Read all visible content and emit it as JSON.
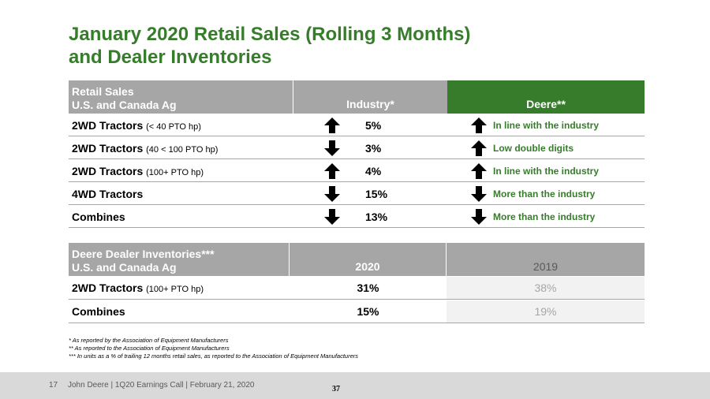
{
  "title_line1": "January 2020 Retail Sales (Rolling 3 Months)",
  "title_line2": "and Dealer Inventories",
  "retail": {
    "header": {
      "col1_line1": "Retail Sales",
      "col1_line2": "U.S. and Canada Ag",
      "col2": "Industry*",
      "col3": "Deere**"
    },
    "rows": [
      {
        "name": "2WD Tractors",
        "detail": "(< 40 PTO hp)",
        "industry_dir": "up",
        "industry_val": "5%",
        "deere_dir": "up",
        "deere_text": "In line with the industry"
      },
      {
        "name": "2WD Tractors",
        "detail": "(40 < 100 PTO hp)",
        "industry_dir": "down",
        "industry_val": "3%",
        "deere_dir": "up",
        "deere_text": "Low double digits"
      },
      {
        "name": "2WD Tractors",
        "detail": "(100+ PTO hp)",
        "industry_dir": "up",
        "industry_val": "4%",
        "deere_dir": "up",
        "deere_text": "In line with the industry"
      },
      {
        "name": "4WD Tractors",
        "detail": "",
        "industry_dir": "down",
        "industry_val": "15%",
        "deere_dir": "down",
        "deere_text": "More than the industry"
      },
      {
        "name": "Combines",
        "detail": "",
        "industry_dir": "down",
        "industry_val": "13%",
        "deere_dir": "down",
        "deere_text": "More than the industry"
      }
    ]
  },
  "inventory": {
    "header": {
      "col1_line1": "Deere Dealer Inventories***",
      "col1_line2": "U.S. and Canada Ag",
      "col2": "2020",
      "col3": "2019"
    },
    "rows": [
      {
        "name": "2WD Tractors",
        "detail": "(100+ PTO hp)",
        "v2020": "31%",
        "v2019": "38%"
      },
      {
        "name": "Combines",
        "detail": "",
        "v2020": "15%",
        "v2019": "19%"
      }
    ]
  },
  "footnotes": {
    "f1": "* As reported by the Association of Equipment Manufacturers",
    "f2": "** As reported to the Association of Equipment Manufacturers",
    "f3": "*** In units as a % of trailing 12 months retail sales, as reported to the Association of Equipment Manufacturers"
  },
  "footer": {
    "page": "17",
    "text": "John Deere | 1Q20 Earnings Call | February 21, 2020",
    "center_number": "37"
  },
  "colors": {
    "green": "#367c2b",
    "header_gray": "#a6a6a6"
  }
}
